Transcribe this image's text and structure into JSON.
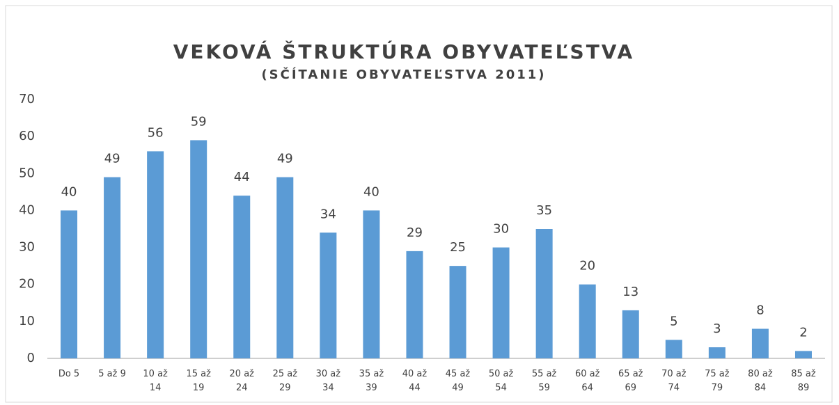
{
  "chart_data": {
    "type": "bar",
    "title": "VEKOVÁ ŠTRUKTÚRA OBYVATEĽSTVA",
    "subtitle": "(SČÍTANIE OBYVATEĽSTVA 2011)",
    "categories": [
      "Do 5",
      "5 až 9",
      "10 až 14",
      "15 až 19",
      "20 až 24",
      "25 až 29",
      "30 až 34",
      "35 až 39",
      "40 až 44",
      "45 až 49",
      "50 až 54",
      "55 až 59",
      "60 až 64",
      "65 až 69",
      "70 až 74",
      "75 až 79",
      "80 až 84",
      "85 až 89"
    ],
    "values": [
      40,
      49,
      56,
      59,
      44,
      49,
      34,
      40,
      29,
      25,
      30,
      35,
      20,
      13,
      5,
      3,
      8,
      2
    ],
    "color": "#5b9bd5",
    "ylim": [
      0,
      70
    ],
    "yticks": [
      0,
      10,
      20,
      30,
      40,
      50,
      60,
      70
    ],
    "grid": false
  }
}
